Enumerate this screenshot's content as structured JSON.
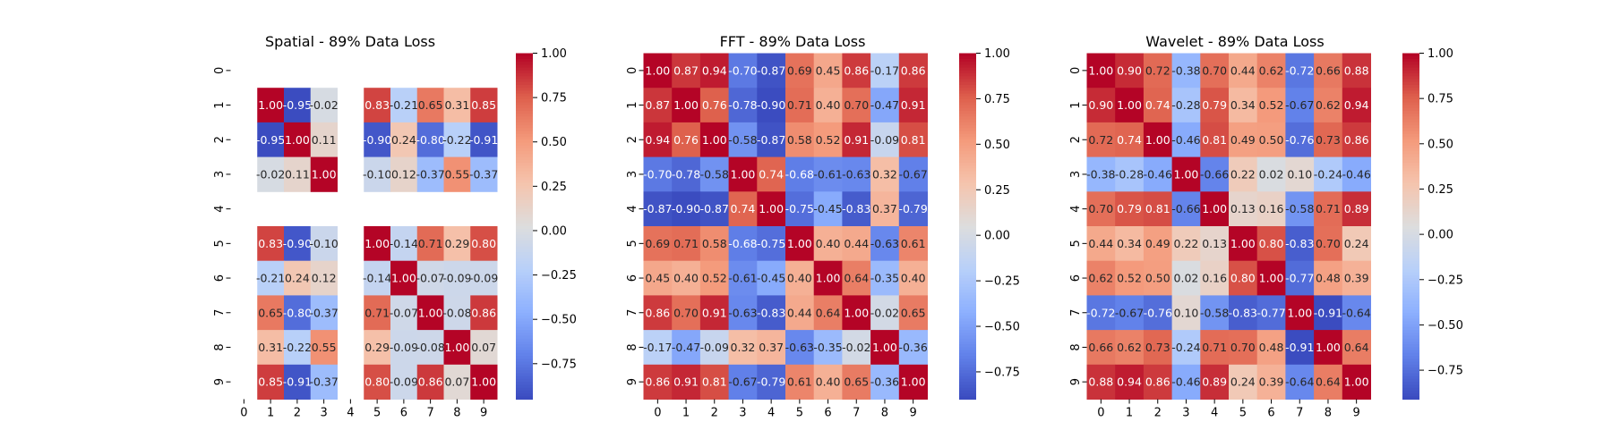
{
  "chart_data": [
    {
      "type": "heatmap",
      "title": "Spatial - 89% Data Loss",
      "xlabel": "",
      "ylabel": "",
      "x_ticks": [
        "0",
        "1",
        "2",
        "3",
        "4",
        "5",
        "6",
        "7",
        "8",
        "9"
      ],
      "y_ticks": [
        "0",
        "1",
        "2",
        "3",
        "4",
        "5",
        "6",
        "7",
        "8",
        "9"
      ],
      "values": [
        [
          null,
          null,
          null,
          null,
          null,
          null,
          null,
          null,
          null,
          null
        ],
        [
          null,
          1.0,
          -0.95,
          -0.02,
          null,
          0.83,
          -0.21,
          0.65,
          0.31,
          0.85
        ],
        [
          null,
          -0.95,
          1.0,
          0.11,
          null,
          -0.9,
          0.24,
          -0.8,
          -0.22,
          -0.91
        ],
        [
          null,
          -0.02,
          0.11,
          1.0,
          null,
          -0.1,
          0.12,
          -0.37,
          0.55,
          -0.37
        ],
        [
          null,
          null,
          null,
          null,
          null,
          null,
          null,
          null,
          null,
          null
        ],
        [
          null,
          0.83,
          -0.9,
          -0.1,
          null,
          1.0,
          -0.14,
          0.71,
          0.29,
          0.8
        ],
        [
          null,
          -0.21,
          0.24,
          0.12,
          null,
          -0.14,
          1.0,
          -0.07,
          -0.09,
          -0.09
        ],
        [
          null,
          0.65,
          -0.8,
          -0.37,
          null,
          0.71,
          -0.07,
          1.0,
          -0.08,
          0.86
        ],
        [
          null,
          0.31,
          -0.22,
          0.55,
          null,
          0.29,
          -0.09,
          -0.08,
          1.0,
          0.07
        ],
        [
          null,
          0.85,
          -0.91,
          -0.37,
          null,
          0.8,
          -0.09,
          0.86,
          0.07,
          1.0
        ]
      ],
      "colorbar": {
        "min": -0.95,
        "max": 1.0,
        "ticks": [
          1.0,
          0.75,
          0.5,
          0.25,
          0.0,
          -0.25,
          -0.5,
          -0.75
        ],
        "tick_labels": [
          "1.00",
          "0.75",
          "0.50",
          "0.25",
          "0.00",
          "−0.25",
          "−0.50",
          "−0.75"
        ],
        "colormap": "coolwarm"
      }
    },
    {
      "type": "heatmap",
      "title": "FFT - 89% Data Loss",
      "xlabel": "",
      "ylabel": "",
      "x_ticks": [
        "0",
        "1",
        "2",
        "3",
        "4",
        "5",
        "6",
        "7",
        "8",
        "9"
      ],
      "y_ticks": [
        "0",
        "1",
        "2",
        "3",
        "4",
        "5",
        "6",
        "7",
        "8",
        "9"
      ],
      "values": [
        [
          1.0,
          0.87,
          0.94,
          -0.7,
          -0.87,
          0.69,
          0.45,
          0.86,
          -0.17,
          0.86
        ],
        [
          0.87,
          1.0,
          0.76,
          -0.78,
          -0.9,
          0.71,
          0.4,
          0.7,
          -0.47,
          0.91
        ],
        [
          0.94,
          0.76,
          1.0,
          -0.58,
          -0.87,
          0.58,
          0.52,
          0.91,
          -0.09,
          0.81
        ],
        [
          -0.7,
          -0.78,
          -0.58,
          1.0,
          0.74,
          -0.68,
          -0.61,
          -0.63,
          0.32,
          -0.67
        ],
        [
          -0.87,
          -0.9,
          -0.87,
          0.74,
          1.0,
          -0.75,
          -0.45,
          -0.83,
          0.37,
          -0.79
        ],
        [
          0.69,
          0.71,
          0.58,
          -0.68,
          -0.75,
          1.0,
          0.4,
          0.44,
          -0.63,
          0.61
        ],
        [
          0.45,
          0.4,
          0.52,
          -0.61,
          -0.45,
          0.4,
          1.0,
          0.64,
          -0.35,
          0.4
        ],
        [
          0.86,
          0.7,
          0.91,
          -0.63,
          -0.83,
          0.44,
          0.64,
          1.0,
          -0.02,
          0.65
        ],
        [
          -0.17,
          -0.47,
          -0.09,
          0.32,
          0.37,
          -0.63,
          -0.35,
          -0.02,
          1.0,
          -0.36
        ],
        [
          0.86,
          0.91,
          0.81,
          -0.67,
          -0.79,
          0.61,
          0.4,
          0.65,
          -0.36,
          1.0
        ]
      ],
      "colorbar": {
        "min": -0.9,
        "max": 1.0,
        "ticks": [
          1.0,
          0.75,
          0.5,
          0.25,
          0.0,
          -0.25,
          -0.5,
          -0.75
        ],
        "tick_labels": [
          "1.00",
          "0.75",
          "0.50",
          "0.25",
          "0.00",
          "−0.25",
          "−0.50",
          "−0.75"
        ],
        "colormap": "coolwarm"
      }
    },
    {
      "type": "heatmap",
      "title": "Wavelet - 89% Data Loss",
      "xlabel": "",
      "ylabel": "",
      "x_ticks": [
        "0",
        "1",
        "2",
        "3",
        "4",
        "5",
        "6",
        "7",
        "8",
        "9"
      ],
      "y_ticks": [
        "0",
        "1",
        "2",
        "3",
        "4",
        "5",
        "6",
        "7",
        "8",
        "9"
      ],
      "values": [
        [
          1.0,
          0.9,
          0.72,
          -0.38,
          0.7,
          0.44,
          0.62,
          -0.72,
          0.66,
          0.88
        ],
        [
          0.9,
          1.0,
          0.74,
          -0.28,
          0.79,
          0.34,
          0.52,
          -0.67,
          0.62,
          0.94
        ],
        [
          0.72,
          0.74,
          1.0,
          -0.46,
          0.81,
          0.49,
          0.5,
          -0.76,
          0.73,
          0.86
        ],
        [
          -0.38,
          -0.28,
          -0.46,
          1.0,
          -0.66,
          0.22,
          0.02,
          0.1,
          -0.24,
          -0.46
        ],
        [
          0.7,
          0.79,
          0.81,
          -0.66,
          1.0,
          0.13,
          0.16,
          -0.58,
          0.71,
          0.89
        ],
        [
          0.44,
          0.34,
          0.49,
          0.22,
          0.13,
          1.0,
          0.8,
          -0.83,
          0.7,
          0.24
        ],
        [
          0.62,
          0.52,
          0.5,
          0.02,
          0.16,
          0.8,
          1.0,
          -0.77,
          0.48,
          0.39
        ],
        [
          -0.72,
          -0.67,
          -0.76,
          0.1,
          -0.58,
          -0.83,
          -0.77,
          1.0,
          -0.91,
          -0.64
        ],
        [
          0.66,
          0.62,
          0.73,
          -0.24,
          0.71,
          0.7,
          0.48,
          -0.91,
          1.0,
          0.64
        ],
        [
          0.88,
          0.94,
          0.86,
          -0.46,
          0.89,
          0.24,
          0.39,
          -0.64,
          0.64,
          1.0
        ]
      ],
      "colorbar": {
        "min": -0.91,
        "max": 1.0,
        "ticks": [
          1.0,
          0.75,
          0.5,
          0.25,
          0.0,
          -0.25,
          -0.5,
          -0.75
        ],
        "tick_labels": [
          "1.00",
          "0.75",
          "0.50",
          "0.25",
          "0.00",
          "−0.25",
          "−0.50",
          "−0.75"
        ],
        "colormap": "coolwarm"
      }
    }
  ]
}
